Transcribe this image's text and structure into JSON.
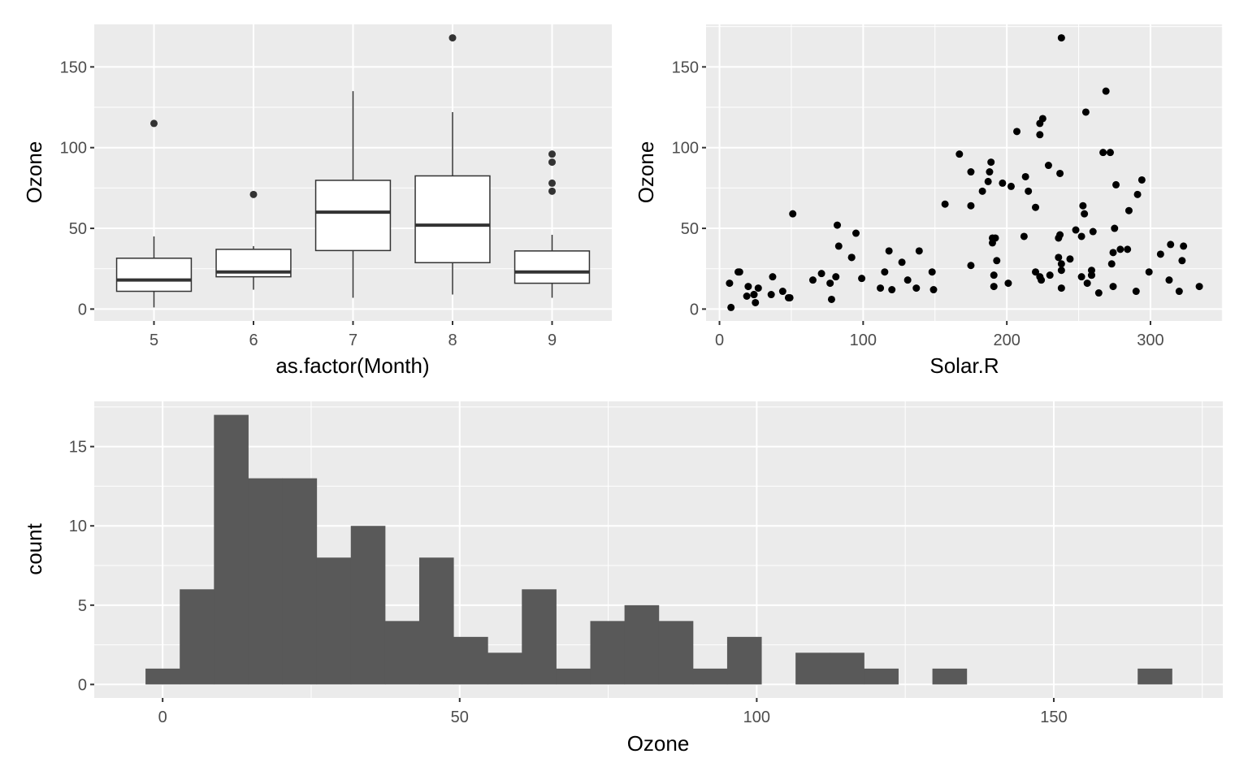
{
  "chart_data": [
    {
      "type": "boxplot",
      "xlabel": "as.factor(Month)",
      "ylabel": "Ozone",
      "categories": [
        "5",
        "6",
        "7",
        "8",
        "9"
      ],
      "ylim": [
        -7.35,
        176.35
      ],
      "yticks": [
        0,
        50,
        100,
        150
      ],
      "boxes": [
        {
          "q1": 11,
          "median": 18,
          "q3": 31.5,
          "lower": 1,
          "upper": 45,
          "outliers": [
            115
          ]
        },
        {
          "q1": 20,
          "median": 23,
          "q3": 37,
          "lower": 12,
          "upper": 39,
          "outliers": [
            71
          ]
        },
        {
          "q1": 36.25,
          "median": 60,
          "q3": 79.75,
          "lower": 7,
          "upper": 135,
          "outliers": []
        },
        {
          "q1": 28.75,
          "median": 52,
          "q3": 82.5,
          "lower": 9,
          "upper": 122,
          "outliers": [
            168
          ]
        },
        {
          "q1": 16,
          "median": 23,
          "q3": 36,
          "lower": 7,
          "upper": 46,
          "outliers": [
            73,
            78,
            91,
            96
          ]
        }
      ],
      "grid": true
    },
    {
      "type": "scatter",
      "xlabel": "Solar.R",
      "ylabel": "Ozone",
      "xlim": [
        -9.35,
        350.35
      ],
      "ylim": [
        -7.35,
        176.35
      ],
      "xticks": [
        0,
        100,
        200,
        300
      ],
      "yticks": [
        0,
        50,
        100,
        150
      ],
      "grid": true,
      "points": [
        [
          190,
          41
        ],
        [
          118,
          36
        ],
        [
          149,
          12
        ],
        [
          313,
          18
        ],
        [
          299,
          23
        ],
        [
          99,
          19
        ],
        [
          19,
          8
        ],
        [
          256,
          16
        ],
        [
          290,
          11
        ],
        [
          274,
          14
        ],
        [
          65,
          18
        ],
        [
          334,
          14
        ],
        [
          307,
          34
        ],
        [
          78,
          6
        ],
        [
          322,
          30
        ],
        [
          44,
          11
        ],
        [
          8,
          1
        ],
        [
          320,
          11
        ],
        [
          25,
          4
        ],
        [
          92,
          32
        ],
        [
          13,
          23
        ],
        [
          252,
          45
        ],
        [
          223,
          115
        ],
        [
          279,
          37
        ],
        [
          127,
          29
        ],
        [
          291,
          71
        ],
        [
          323,
          39
        ],
        [
          148,
          23
        ],
        [
          191,
          21
        ],
        [
          284,
          37
        ],
        [
          37,
          20
        ],
        [
          120,
          12
        ],
        [
          137,
          13
        ],
        [
          269,
          135
        ],
        [
          248,
          49
        ],
        [
          236,
          32
        ],
        [
          175,
          64
        ],
        [
          314,
          40
        ],
        [
          276,
          77
        ],
        [
          267,
          97
        ],
        [
          272,
          97
        ],
        [
          175,
          85
        ],
        [
          264,
          10
        ],
        [
          175,
          27
        ],
        [
          48,
          7
        ],
        [
          260,
          48
        ],
        [
          274,
          35
        ],
        [
          285,
          61
        ],
        [
          187,
          79
        ],
        [
          220,
          63
        ],
        [
          7,
          16
        ],
        [
          294,
          80
        ],
        [
          223,
          108
        ],
        [
          81,
          20
        ],
        [
          82,
          52
        ],
        [
          213,
          82
        ],
        [
          275,
          50
        ],
        [
          253,
          64
        ],
        [
          254,
          59
        ],
        [
          83,
          39
        ],
        [
          24,
          9
        ],
        [
          77,
          16
        ],
        [
          255,
          122
        ],
        [
          229,
          89
        ],
        [
          207,
          110
        ],
        [
          192,
          44
        ],
        [
          273,
          28
        ],
        [
          157,
          65
        ],
        [
          71,
          22
        ],
        [
          51,
          59
        ],
        [
          115,
          23
        ],
        [
          244,
          31
        ],
        [
          190,
          44
        ],
        [
          259,
          21
        ],
        [
          36,
          9
        ],
        [
          212,
          45
        ],
        [
          238,
          168
        ],
        [
          215,
          73
        ],
        [
          203,
          76
        ],
        [
          225,
          118
        ],
        [
          237,
          84
        ],
        [
          188,
          85
        ],
        [
          167,
          96
        ],
        [
          197,
          78
        ],
        [
          183,
          73
        ],
        [
          189,
          91
        ],
        [
          95,
          47
        ],
        [
          92,
          32
        ],
        [
          252,
          20
        ],
        [
          220,
          23
        ],
        [
          230,
          21
        ],
        [
          259,
          24
        ],
        [
          236,
          44
        ],
        [
          259,
          21
        ],
        [
          238,
          28
        ],
        [
          24,
          9
        ],
        [
          112,
          13
        ],
        [
          237,
          46
        ],
        [
          224,
          18
        ],
        [
          27,
          13
        ],
        [
          238,
          24
        ],
        [
          201,
          16
        ],
        [
          238,
          13
        ],
        [
          14,
          23
        ],
        [
          139,
          36
        ],
        [
          49,
          7
        ],
        [
          20,
          14
        ],
        [
          193,
          30
        ],
        [
          191,
          14
        ],
        [
          131,
          18
        ],
        [
          223,
          20
        ]
      ]
    },
    {
      "type": "bar",
      "subtype": "histogram",
      "xlabel": "Ozone",
      "ylabel": "count",
      "binwidth": 5.758621,
      "first_bin_center": 0,
      "counts": [
        1,
        6,
        17,
        13,
        13,
        8,
        10,
        4,
        8,
        3,
        2,
        6,
        1,
        4,
        5,
        4,
        1,
        3,
        0,
        2,
        2,
        1,
        0,
        1,
        0,
        0,
        0,
        0,
        0,
        1
      ],
      "xlim": [
        -11.51,
        178.45
      ],
      "ylim": [
        -0.85,
        17.85
      ],
      "xticks": [
        0,
        50,
        100,
        150
      ],
      "yticks": [
        0,
        5,
        10,
        15
      ],
      "grid": true
    }
  ],
  "colors": {
    "panel": "#EBEBEB",
    "grid": "#FFFFFF",
    "bar": "#595959",
    "point": "#000000",
    "box_line": "#333333",
    "tick_text": "#4D4D4D"
  }
}
